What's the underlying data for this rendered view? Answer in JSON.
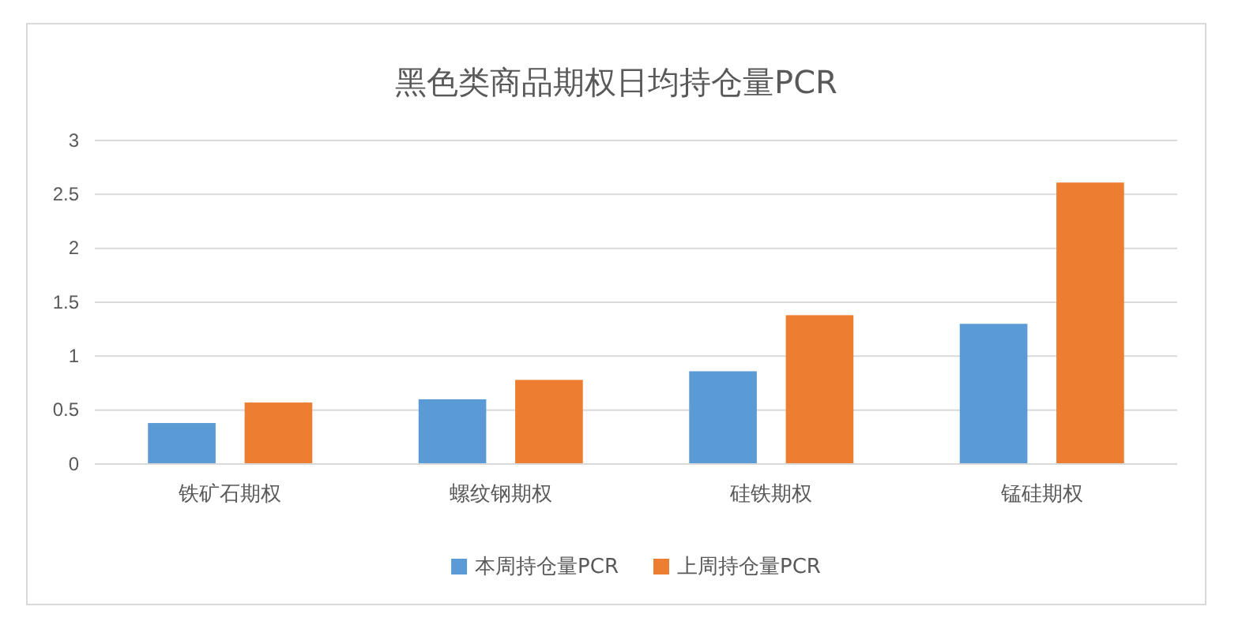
{
  "chart_data": {
    "type": "bar",
    "title": "黑色类商品期权日均持仓量PCR",
    "categories": [
      "铁矿石期权",
      "螺纹钢期权",
      "硅铁期权",
      "锰硅期权"
    ],
    "series": [
      {
        "name": "本周持仓量PCR",
        "color": "#5b9bd5",
        "values": [
          0.38,
          0.6,
          0.86,
          1.3
        ]
      },
      {
        "name": "上周持仓量PCR",
        "color": "#ed7d31",
        "values": [
          0.57,
          0.78,
          1.38,
          2.61
        ]
      }
    ],
    "ylim": [
      0,
      3
    ],
    "yticks": [
      0,
      0.5,
      1,
      1.5,
      2,
      2.5,
      3
    ],
    "grid": "y",
    "legend": "bottom"
  }
}
